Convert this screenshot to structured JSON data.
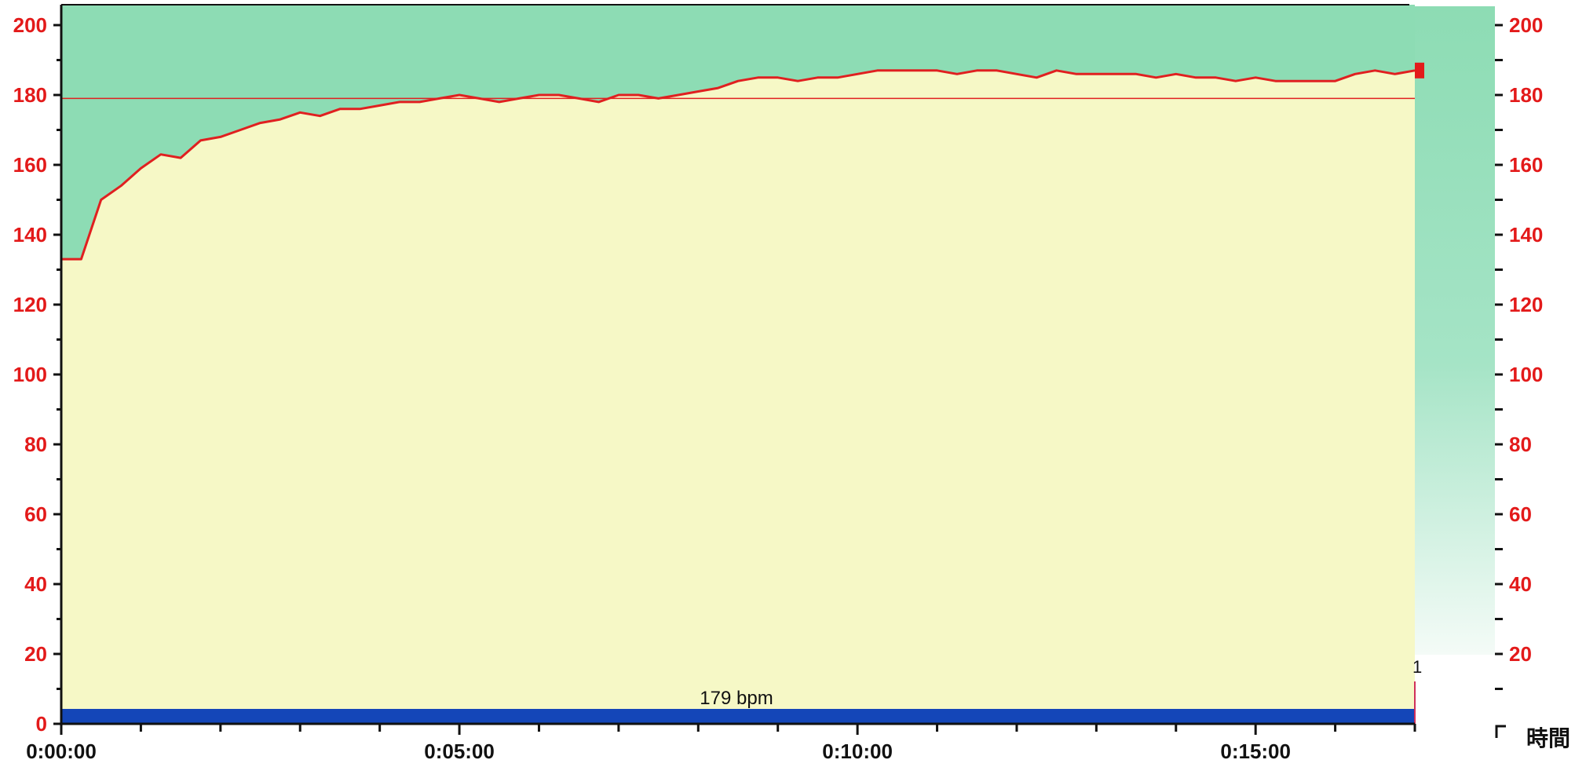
{
  "colors": {
    "background_upper": "#8ddcb4",
    "plot_fill": "#f6f8c6",
    "series_line": "#e02020",
    "axis_tick_text_y": "#e31a1a",
    "axis_tick_text_x": "#111111",
    "baseline_bar": "#1446b8",
    "marker": "#e31a1a"
  },
  "chart_data": {
    "type": "area",
    "x_unit": "time",
    "y_unit": "bpm",
    "xlim": [
      "0:00:00",
      "0:17:00"
    ],
    "ylim": [
      0,
      200
    ],
    "grid": false,
    "y_ticks_left": [
      0,
      20,
      40,
      60,
      80,
      100,
      120,
      140,
      160,
      180,
      200
    ],
    "y_ticks_right": [
      20,
      40,
      60,
      80,
      100,
      120,
      140,
      160,
      180,
      200
    ],
    "x_tick_labels": [
      "0:00:00",
      "0:05:00",
      "0:10:00",
      "0:15:00"
    ],
    "x_tick_seconds": [
      0,
      300,
      600,
      900
    ],
    "x_label": "時間",
    "reference_line": {
      "value": 179,
      "label": "179 bpm"
    },
    "right_panel_marker": "1",
    "series": [
      {
        "values_x": [
          0,
          15,
          30,
          45,
          60,
          75,
          90,
          105,
          120,
          135,
          150,
          165,
          180,
          195,
          210,
          225,
          240,
          255,
          270,
          285,
          300,
          315,
          330,
          345,
          360,
          375,
          390,
          405,
          420,
          435,
          450,
          465,
          480,
          495,
          510,
          525,
          540,
          555,
          570,
          585,
          600,
          615,
          630,
          645,
          660,
          675,
          690,
          705,
          720,
          735,
          750,
          765,
          780,
          795,
          810,
          825,
          840,
          855,
          870,
          885,
          900,
          915,
          930,
          945,
          960,
          975,
          990,
          1005,
          1020
        ],
        "values_y": [
          133,
          133,
          150,
          154,
          159,
          163,
          162,
          167,
          168,
          170,
          172,
          173,
          175,
          174,
          176,
          176,
          177,
          178,
          178,
          179,
          180,
          179,
          178,
          179,
          180,
          180,
          179,
          178,
          180,
          180,
          179,
          180,
          181,
          182,
          184,
          185,
          185,
          184,
          185,
          185,
          186,
          187,
          187,
          187,
          187,
          186,
          187,
          187,
          186,
          185,
          187,
          186,
          186,
          186,
          186,
          185,
          186,
          185,
          185,
          184,
          185,
          184,
          184,
          184,
          184,
          186,
          187,
          186,
          187
        ]
      }
    ]
  }
}
